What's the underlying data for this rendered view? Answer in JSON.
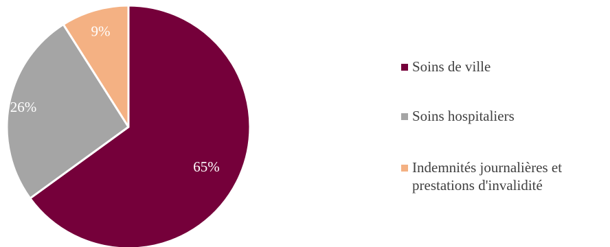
{
  "chart_data": {
    "type": "pie",
    "title": "",
    "slices": [
      {
        "label": "Soins de ville",
        "value": 65,
        "value_label": "65%",
        "color": "#75003A"
      },
      {
        "label": "Soins hospitaliers",
        "value": 26,
        "value_label": "26%",
        "color": "#A5A5A5"
      },
      {
        "label": "Indemnités journalières et prestations d'invalidité",
        "value": 9,
        "value_label": "9%",
        "color": "#F4B183"
      }
    ],
    "start_angle": "12 o'clock",
    "direction": "clockwise",
    "legend_position": "right"
  }
}
